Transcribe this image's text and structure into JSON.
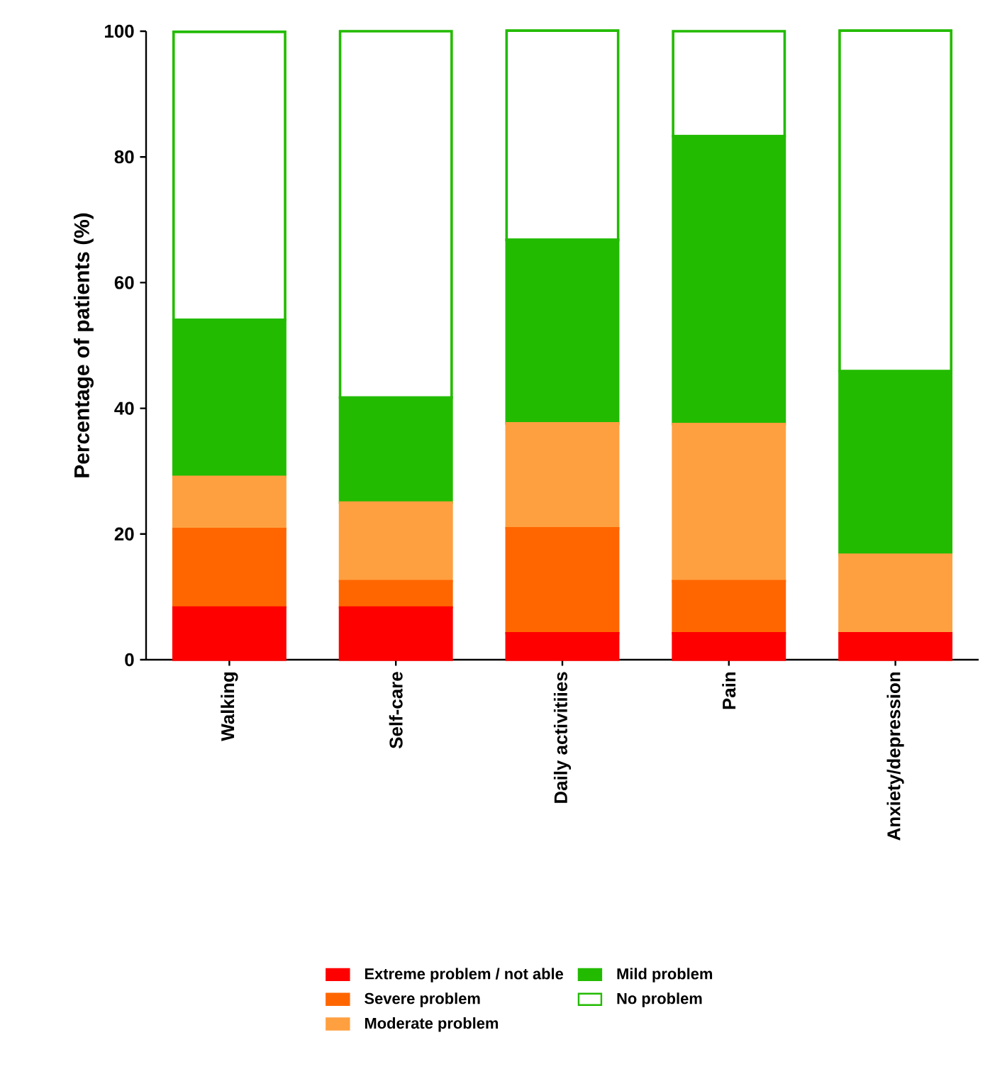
{
  "chart_data": {
    "type": "bar",
    "stacked": true,
    "ylabel": "Percentage of patients (%)",
    "categories": [
      "Walking",
      "Self-care",
      "Daily activitiies",
      "Pain",
      "Anxiety/depression"
    ],
    "series": [
      {
        "name": "Extreme problem / not able",
        "color": "#ff0000",
        "values": [
          8.3,
          8.3,
          4.2,
          4.2,
          4.2
        ]
      },
      {
        "name": "Severe problem",
        "color": "#ff6600",
        "values": [
          12.5,
          4.2,
          16.7,
          8.3,
          0
        ]
      },
      {
        "name": "Moderate problem",
        "color": "#ffa040",
        "values": [
          8.3,
          12.5,
          16.7,
          25,
          12.5
        ]
      },
      {
        "name": "Mild problem",
        "color": "#22bb00",
        "values": [
          25,
          16.7,
          29.2,
          45.8,
          29.2
        ]
      },
      {
        "name": "No problem",
        "color": "#22bb00",
        "values": [
          45.8,
          58.3,
          33.3,
          16.7,
          54.2
        ]
      }
    ],
    "ylim": [
      0,
      100
    ],
    "yticks": [
      0,
      20,
      40,
      60,
      80,
      100
    ],
    "legend": "bottom"
  }
}
